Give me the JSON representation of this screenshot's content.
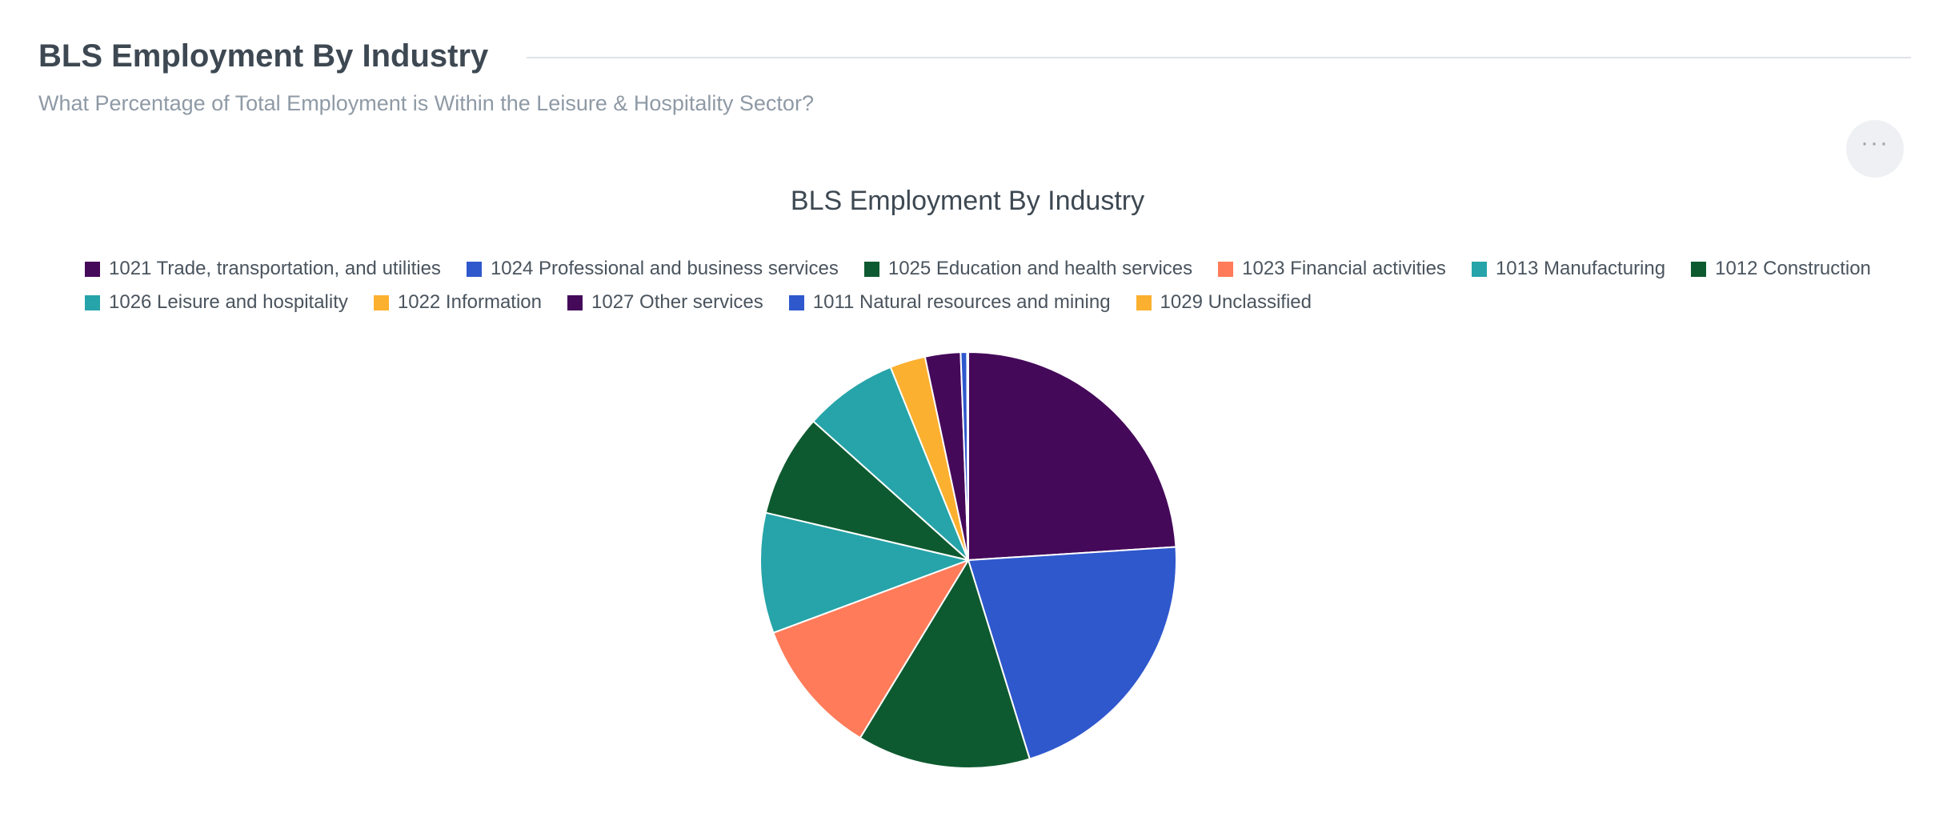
{
  "header": {
    "title": "BLS Employment By Industry",
    "subtitle": "What Percentage of Total Employment is Within the Leisure & Hospitality Sector?",
    "more_label": "···"
  },
  "chart_data": {
    "type": "pie",
    "title": "BLS Employment By Industry",
    "legend_position": "top",
    "slices": [
      {
        "label": "1021 Trade, transportation, and utilities",
        "value": 24.4,
        "color": "#45095a"
      },
      {
        "label": "1024 Professional and business services",
        "value": 21.6,
        "color": "#2f58cd"
      },
      {
        "label": "1025 Education and health services",
        "value": 13.7,
        "color": "#0e5a30"
      },
      {
        "label": "1023 Financial activities",
        "value": 10.8,
        "color": "#ff7b5a"
      },
      {
        "label": "1013 Manufacturing",
        "value": 9.5,
        "color": "#26a4a9"
      },
      {
        "label": "1012 Construction",
        "value": 8.1,
        "color": "#0e5a30"
      },
      {
        "label": "1026 Leisure and hospitality",
        "value": 7.4,
        "color": "#26a4a9"
      },
      {
        "label": "1022 Information",
        "value": 2.8,
        "color": "#fcb02f"
      },
      {
        "label": "1027 Other services",
        "value": 2.8,
        "color": "#45095a"
      },
      {
        "label": "1011 Natural resources and mining",
        "value": 0.5,
        "color": "#2f58cd"
      },
      {
        "label": "1029 Unclassified",
        "value": 0.1,
        "color": "#fcb02f"
      }
    ],
    "legend_order": [
      "1021 Trade, transportation, and utilities",
      "1024 Professional and business services",
      "1025 Education and health services",
      "1023 Financial activities",
      "1013 Manufacturing",
      "1012 Construction",
      "1026 Leisure and hospitality",
      "1022 Information",
      "1027 Other services",
      "1011 Natural resources and mining",
      "1029 Unclassified"
    ]
  }
}
